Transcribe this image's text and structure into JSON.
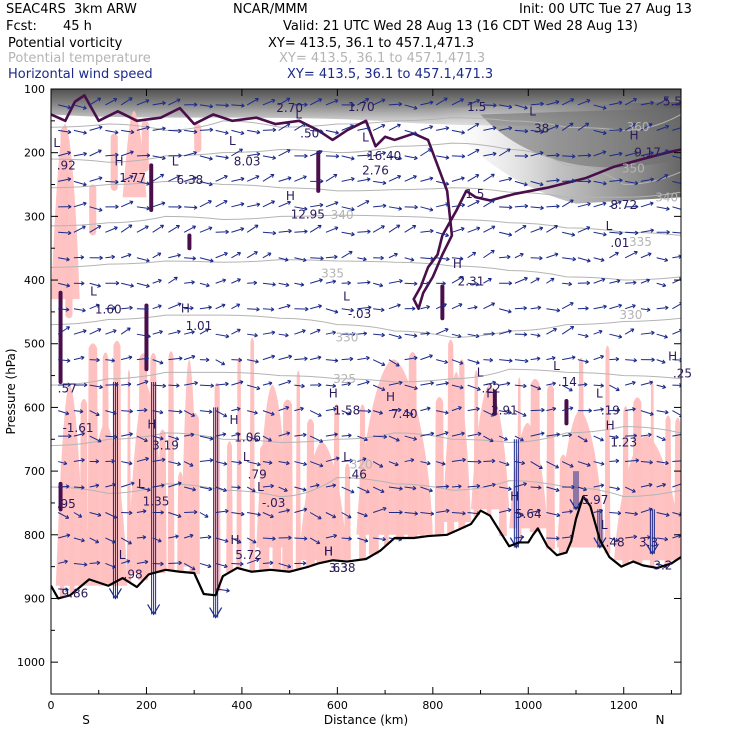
{
  "header": {
    "model": "SEAC4RS  3km ARW",
    "org": "NCAR/MMM",
    "init": "Init: 00 UTC Tue 27 Aug 13",
    "fcst_label": "Fcst:",
    "fcst_value": "45 h",
    "valid": "Valid: 21 UTC Wed 28 Aug 13 (16 CDT Wed 28 Aug 13)",
    "fields": [
      {
        "name": "Potential vorticity",
        "xy": "XY= 413.5, 36.1 to 457.1,471.3",
        "color": "#000000"
      },
      {
        "name": "Potential temperature",
        "xy": "XY= 413.5, 36.1 to 457.1,471.3",
        "color": "#b4b4b4"
      },
      {
        "name": "Horizontal wind speed",
        "xy": "XY= 413.5, 36.1 to 457.1,471.3",
        "color": "#1b2a8a"
      }
    ]
  },
  "colors": {
    "pv_contour": "#4a0f4a",
    "pv_fill": "#ffc0c0",
    "theta": "#b4b4b4",
    "wind": "#1b2a8a",
    "terrain": "#000000"
  },
  "chart_data": {
    "type": "vertical-cross-section",
    "xlabel": "Distance (km)",
    "ylabel": "Pressure (hPa)",
    "xlim": [
      0,
      1320
    ],
    "ylim": [
      1050,
      100
    ],
    "x_ticks": [
      "0",
      "200",
      "400",
      "600",
      "800",
      "1000",
      "1200"
    ],
    "x_tick_values": [
      0,
      200,
      400,
      600,
      800,
      1000,
      1200
    ],
    "y_ticks": [
      "100",
      "200",
      "300",
      "400",
      "500",
      "600",
      "700",
      "800",
      "900",
      "1000"
    ],
    "y_tick_values": [
      100,
      200,
      300,
      400,
      500,
      600,
      700,
      800,
      900,
      1000
    ],
    "endpoints": {
      "left": "S",
      "right": "N"
    },
    "theta_labels": [
      {
        "text": "360",
        "km": 1230,
        "p": 160
      },
      {
        "text": "350",
        "km": 1220,
        "p": 225
      },
      {
        "text": "340",
        "km": 1290,
        "p": 270
      },
      {
        "text": "340",
        "km": 610,
        "p": 298
      },
      {
        "text": "335",
        "km": 1235,
        "p": 340
      },
      {
        "text": "335",
        "km": 590,
        "p": 390
      },
      {
        "text": "330",
        "km": 1215,
        "p": 455
      },
      {
        "text": "330",
        "km": 620,
        "p": 490
      },
      {
        "text": "325",
        "km": 615,
        "p": 555
      },
      {
        "text": "320",
        "km": 650,
        "p": 690
      }
    ],
    "extrema": [
      {
        "text": "L",
        "km": 5,
        "p": 185
      },
      {
        "text": ".92",
        "km": 12,
        "p": 220
      },
      {
        "text": "H",
        "km": 133,
        "p": 214
      },
      {
        "text": "1.77",
        "km": 143,
        "p": 240
      },
      {
        "text": "L",
        "km": 253,
        "p": 214
      },
      {
        "text": "6.38",
        "km": 263,
        "p": 243
      },
      {
        "text": "L",
        "km": 373,
        "p": 182
      },
      {
        "text": "8.03",
        "km": 383,
        "p": 214
      },
      {
        "text": "L",
        "km": 512,
        "p": 140
      },
      {
        "text": ".50",
        "km": 522,
        "p": 170
      },
      {
        "text": "L",
        "km": 652,
        "p": 176
      },
      {
        "text": "16.40",
        "km": 662,
        "p": 205
      },
      {
        "text": "2.76",
        "km": 652,
        "p": 228
      },
      {
        "text": "H",
        "km": 492,
        "p": 268
      },
      {
        "text": "12.95",
        "km": 502,
        "p": 297
      },
      {
        "text": "1.5",
        "km": 868,
        "p": 265
      },
      {
        "text": "H",
        "km": 842,
        "p": 375
      },
      {
        "text": "2.31",
        "km": 852,
        "p": 402
      },
      {
        "text": "L",
        "km": 82,
        "p": 418
      },
      {
        "text": "1.60",
        "km": 92,
        "p": 446
      },
      {
        "text": "H",
        "km": 272,
        "p": 445
      },
      {
        "text": "1.01",
        "km": 282,
        "p": 472
      },
      {
        "text": "L",
        "km": 612,
        "p": 426
      },
      {
        "text": "-.03",
        "km": 622,
        "p": 453
      },
      {
        "text": "L",
        "km": 1002,
        "p": 135
      },
      {
        "text": "38",
        "km": 1012,
        "p": 162
      },
      {
        "text": "H",
        "km": 1212,
        "p": 173
      },
      {
        "text": "9.17",
        "km": 1222,
        "p": 200
      },
      {
        "text": "8.72",
        "km": 1172,
        "p": 282
      },
      {
        "text": "L",
        "km": 1162,
        "p": 315
      },
      {
        "text": ".01",
        "km": 1172,
        "p": 342
      },
      {
        "text": "H",
        "km": 1293,
        "p": 520
      },
      {
        "text": ".25",
        "km": 1303,
        "p": 547
      },
      {
        "text": ".57",
        "km": 14,
        "p": 570
      },
      {
        "text": "-1.61",
        "km": 24,
        "p": 632
      },
      {
        "text": "H",
        "km": 202,
        "p": 627
      },
      {
        "text": "3.19",
        "km": 212,
        "p": 660
      },
      {
        "text": "H",
        "km": 582,
        "p": 578
      },
      {
        "text": "1.58",
        "km": 592,
        "p": 605
      },
      {
        "text": "H",
        "km": 702,
        "p": 584
      },
      {
        "text": "7.40",
        "km": 712,
        "p": 610
      },
      {
        "text": "H",
        "km": 374,
        "p": 620
      },
      {
        "text": "1.06",
        "km": 384,
        "p": 647
      },
      {
        "text": "L",
        "km": 402,
        "p": 678
      },
      {
        "text": ".79",
        "km": 412,
        "p": 705
      },
      {
        "text": "L",
        "km": 612,
        "p": 678
      },
      {
        "text": ".46",
        "km": 622,
        "p": 705
      },
      {
        "text": "L",
        "km": 892,
        "p": 545
      },
      {
        "text": ".22",
        "km": 902,
        "p": 570
      },
      {
        "text": "L",
        "km": 1052,
        "p": 535
      },
      {
        "text": ".14",
        "km": 1062,
        "p": 560
      },
      {
        "text": "H",
        "km": 912,
        "p": 578
      },
      {
        "text": "2.91",
        "km": 922,
        "p": 605
      },
      {
        "text": "L",
        "km": 1142,
        "p": 578
      },
      {
        "text": ".19",
        "km": 1152,
        "p": 605
      },
      {
        "text": "H",
        "km": 1162,
        "p": 628
      },
      {
        "text": "1.23",
        "km": 1172,
        "p": 655
      },
      {
        "text": "L",
        "km": 182,
        "p": 720
      },
      {
        "text": "1.35",
        "km": 192,
        "p": 748
      },
      {
        "text": "L",
        "km": 432,
        "p": 725
      },
      {
        "text": "-.03",
        "km": 442,
        "p": 750
      },
      {
        "text": ".95",
        "km": 12,
        "p": 752
      },
      {
        "text": "H",
        "km": 962,
        "p": 740
      },
      {
        "text": "5.64",
        "km": 972,
        "p": 767
      },
      {
        "text": "5.97",
        "km": 1112,
        "p": 745
      },
      {
        "text": "L",
        "km": 1152,
        "p": 785
      },
      {
        "text": ".48",
        "km": 1162,
        "p": 812
      },
      {
        "text": "3.3",
        "km": 1232,
        "p": 812
      },
      {
        "text": "H",
        "km": 376,
        "p": 808
      },
      {
        "text": "5.72",
        "km": 386,
        "p": 832
      },
      {
        "text": "H",
        "km": 572,
        "p": 826
      },
      {
        "text": "3.38",
        "km": 582,
        "p": 852
      },
      {
        "text": "H",
        "km": 572,
        "p": 826
      },
      {
        "text": ".63",
        "km": 582,
        "p": 852
      },
      {
        "text": "L",
        "km": 142,
        "p": 832
      },
      {
        "text": ".98",
        "km": 152,
        "p": 862
      },
      {
        "text": "9.86",
        "km": 22,
        "p": 892
      },
      {
        "text": "3.2",
        "km": 1262,
        "p": 848
      },
      {
        "text": "2.70",
        "km": 472,
        "p": 130
      },
      {
        "text": "1.70",
        "km": 622,
        "p": 128
      },
      {
        "text": "1.5",
        "km": 872,
        "p": 128
      },
      {
        "text": "5.5",
        "km": 1282,
        "p": 120
      }
    ],
    "terrain_p": [
      [
        0,
        880
      ],
      [
        15,
        900
      ],
      [
        40,
        895
      ],
      [
        80,
        870
      ],
      [
        120,
        880
      ],
      [
        150,
        868
      ],
      [
        180,
        882
      ],
      [
        205,
        862
      ],
      [
        240,
        855
      ],
      [
        270,
        858
      ],
      [
        300,
        860
      ],
      [
        320,
        893
      ],
      [
        345,
        895
      ],
      [
        360,
        865
      ],
      [
        390,
        852
      ],
      [
        420,
        858
      ],
      [
        460,
        855
      ],
      [
        500,
        858
      ],
      [
        540,
        850
      ],
      [
        560,
        845
      ],
      [
        590,
        840
      ],
      [
        620,
        842
      ],
      [
        660,
        838
      ],
      [
        690,
        825
      ],
      [
        720,
        805
      ],
      [
        760,
        805
      ],
      [
        790,
        802
      ],
      [
        830,
        800
      ],
      [
        860,
        790
      ],
      [
        880,
        783
      ],
      [
        900,
        762
      ],
      [
        920,
        770
      ],
      [
        945,
        800
      ],
      [
        960,
        818
      ],
      [
        980,
        812
      ],
      [
        1000,
        812
      ],
      [
        1010,
        800
      ],
      [
        1020,
        790
      ],
      [
        1040,
        818
      ],
      [
        1060,
        832
      ],
      [
        1080,
        828
      ],
      [
        1090,
        810
      ],
      [
        1100,
        775
      ],
      [
        1115,
        740
      ],
      [
        1130,
        755
      ],
      [
        1150,
        808
      ],
      [
        1170,
        835
      ],
      [
        1195,
        850
      ],
      [
        1220,
        842
      ],
      [
        1240,
        848
      ],
      [
        1270,
        852
      ],
      [
        1300,
        845
      ],
      [
        1320,
        835
      ]
    ]
  }
}
